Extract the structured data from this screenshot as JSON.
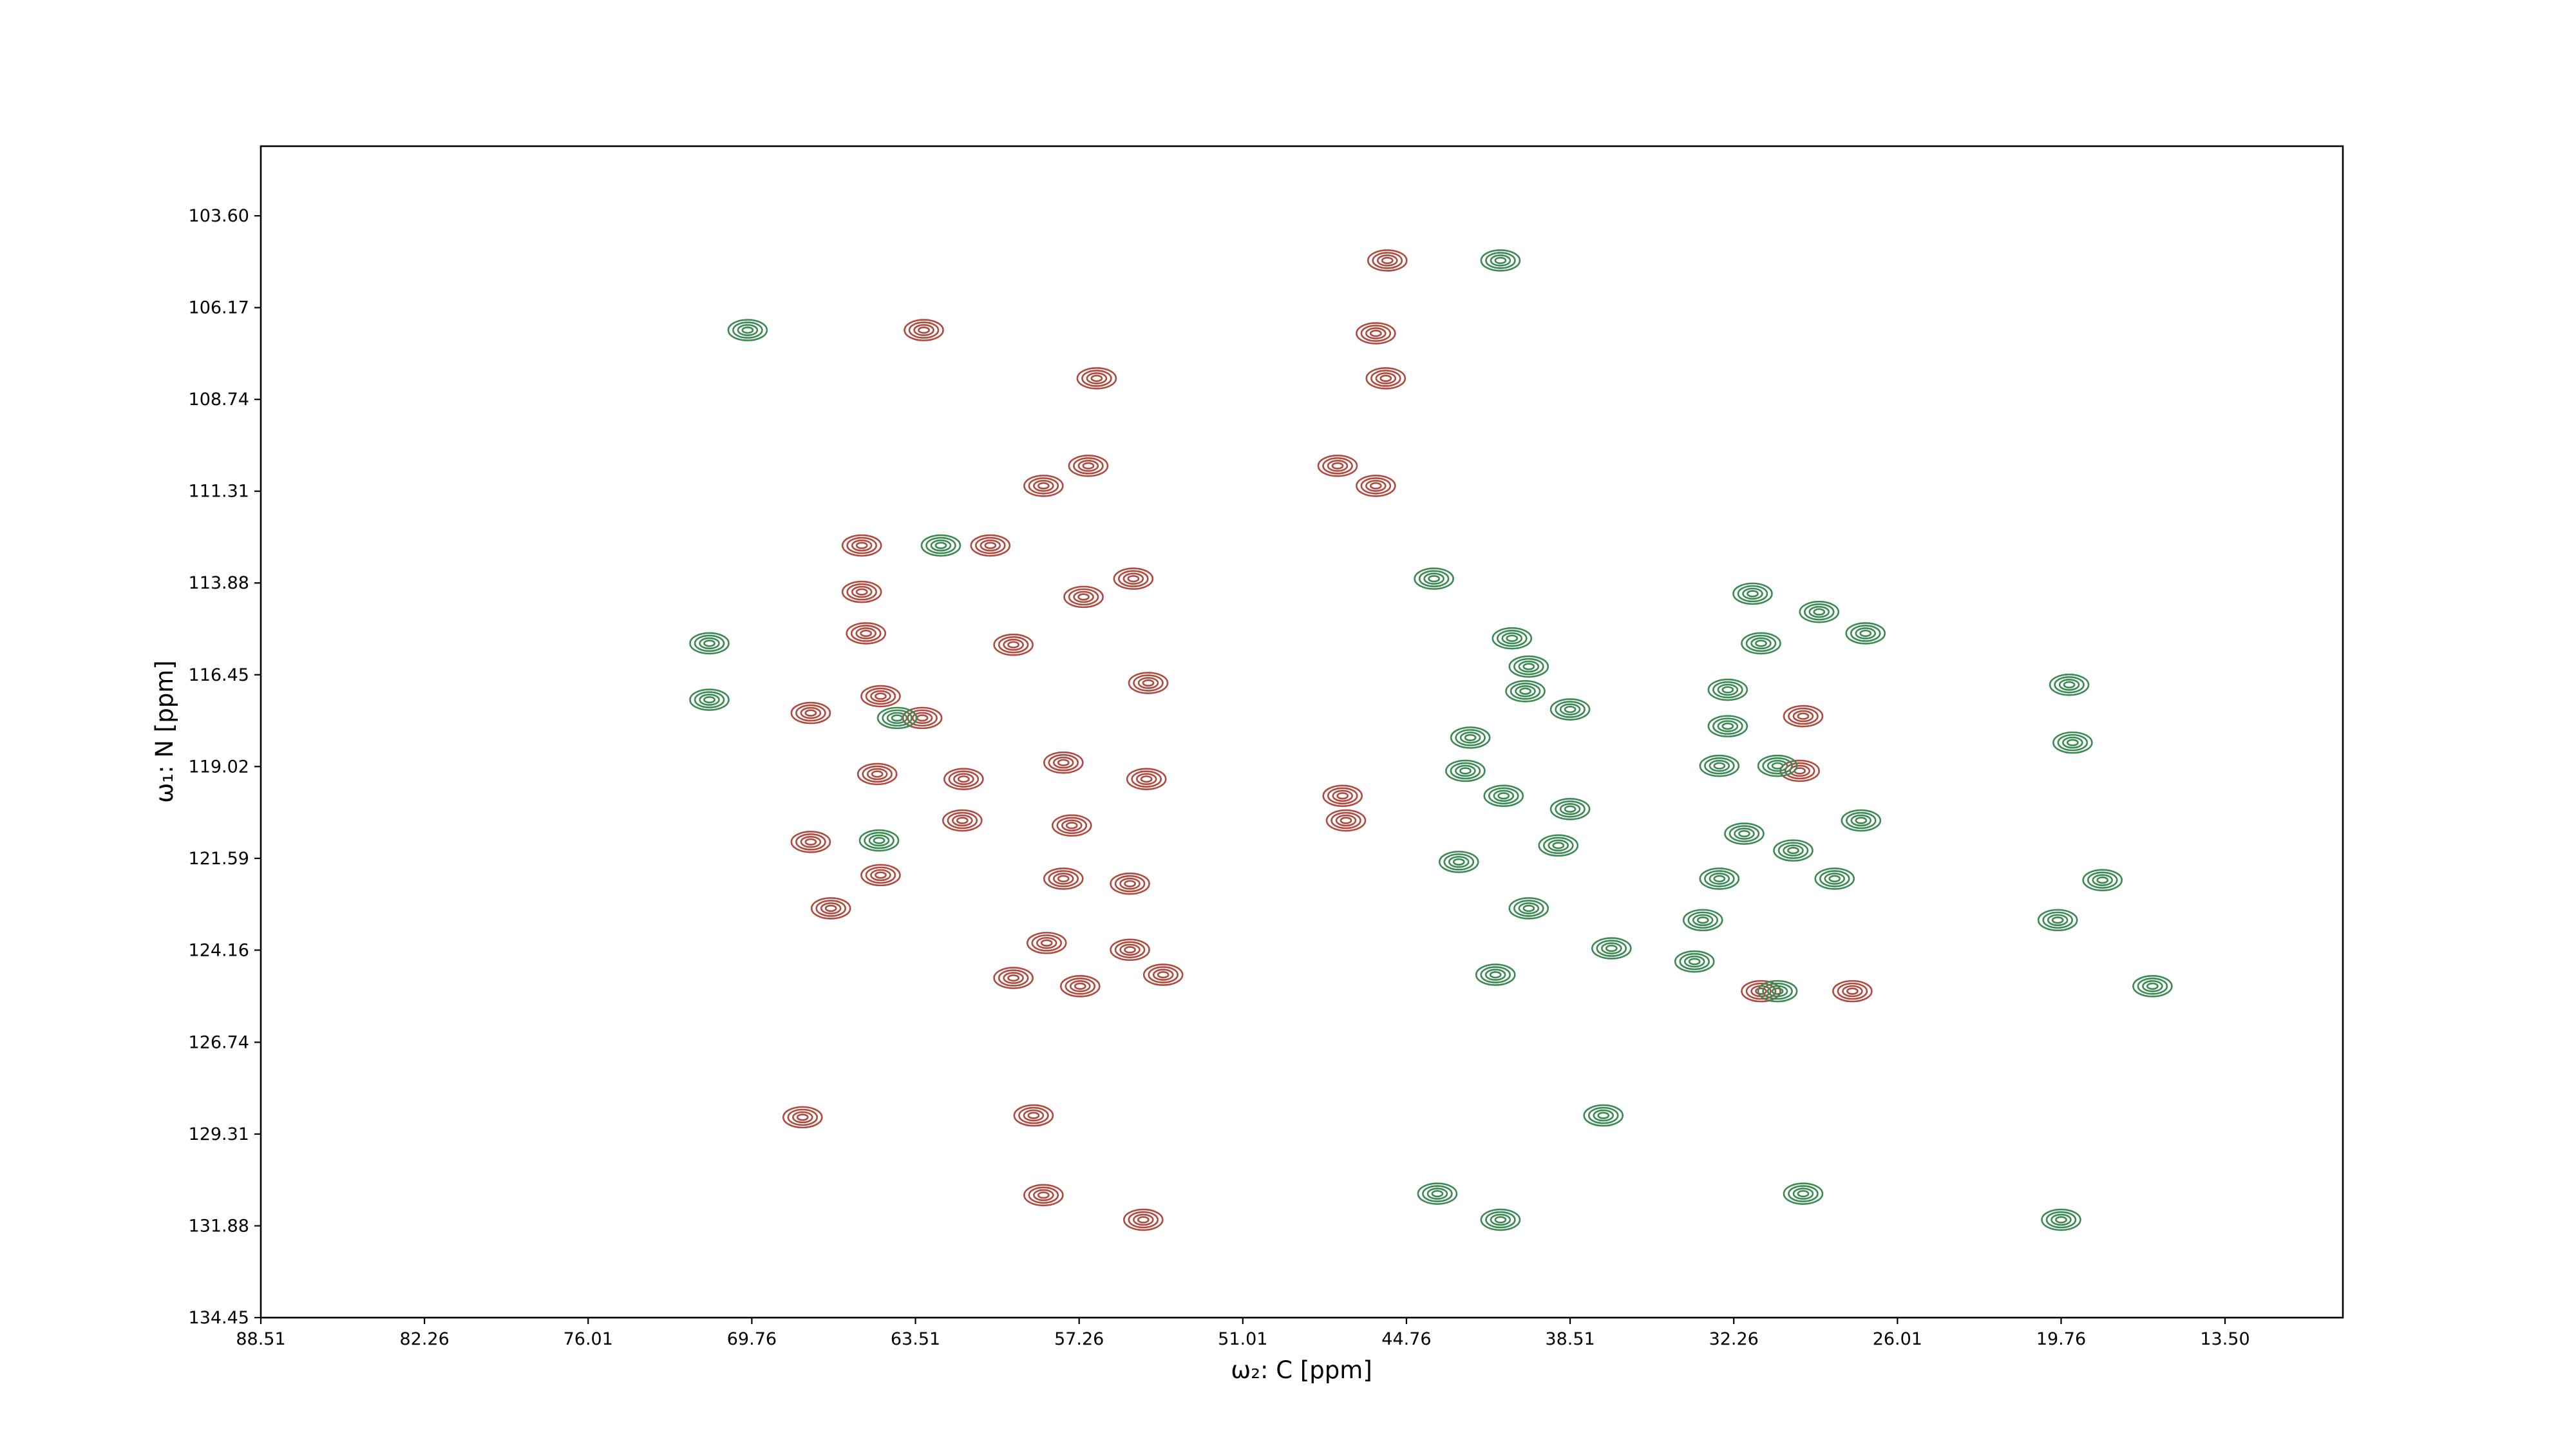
{
  "chart_data": {
    "type": "contour",
    "xlabel": "ω₂: C [ppm]",
    "ylabel": "ω₁: N [ppm]",
    "xlim": [
      88.51,
      9.0
    ],
    "ylim": [
      101.65,
      134.45
    ],
    "xticks": [
      88.51,
      82.26,
      76.01,
      69.76,
      63.51,
      57.26,
      51.01,
      44.76,
      38.51,
      32.26,
      26.01,
      19.76,
      {
        "value": 13.5,
        "label": "13.50"
      }
    ],
    "yticks": [
      {
        "value": 103.6,
        "label": "103.60"
      },
      106.17,
      108.74,
      111.31,
      113.88,
      116.45,
      119.02,
      121.59,
      124.16,
      126.74,
      129.31,
      131.88,
      134.45
    ],
    "series": [
      {
        "color": "#b04a3f",
        "x": [
          45.49,
          63.19,
          45.93,
          56.59,
          45.55,
          47.39,
          45.93,
          58.62,
          56.91,
          60.65,
          65.56,
          57.09,
          55.19,
          65.56,
          65.4,
          59.77,
          67.51,
          64.84,
          63.25,
          64.97,
          61.67,
          57.86,
          54.69,
          61.72,
          57.54,
          47.2,
          47.07,
          67.51,
          64.84,
          66.74,
          57.86,
          55.32,
          58.5,
          55.32,
          59.77,
          57.22,
          54.05,
          31.22,
          27.73,
          67.82,
          59.0,
          58.62,
          54.81,
          29.61,
          29.74,
          54.62
        ],
        "values": [
          104.85,
          106.8,
          106.89,
          108.15,
          108.15,
          110.6,
          111.16,
          111.16,
          110.6,
          112.83,
          112.83,
          114.27,
          113.76,
          114.13,
          115.29,
          115.61,
          117.52,
          117.05,
          117.66,
          119.23,
          119.37,
          118.91,
          119.37,
          120.53,
          120.67,
          119.84,
          120.53,
          121.13,
          122.06,
          122.99,
          122.16,
          122.3,
          123.96,
          124.15,
          124.94,
          125.17,
          124.85,
          125.31,
          125.31,
          128.84,
          128.79,
          131.02,
          131.71,
          117.61,
          119.14,
          116.68
        ]
      },
      {
        "color": "#3a8a52",
        "x": [
          69.92,
          41.17,
          62.54,
          71.38,
          71.38,
          64.21,
          43.71,
          31.54,
          29.0,
          27.23,
          40.73,
          40.09,
          40.22,
          38.51,
          42.32,
          42.51,
          41.05,
          38.51,
          38.96,
          32.49,
          32.49,
          32.81,
          30.59,
          31.86,
          27.4,
          29.99,
          28.41,
          32.81,
          33.44,
          33.76,
          36.93,
          40.09,
          42.76,
          41.36,
          30.59,
          19.32,
          18.18,
          19.89,
          16.27,
          19.45,
          37.24,
          43.58,
          41.17,
          29.61,
          19.76,
          64.9,
          31.22
        ],
        "values": [
          106.8,
          104.85,
          112.83,
          115.57,
          117.15,
          117.66,
          113.76,
          114.18,
          114.69,
          115.29,
          115.43,
          116.22,
          116.91,
          117.42,
          118.21,
          119.14,
          119.84,
          120.21,
          121.23,
          116.87,
          117.89,
          119.0,
          119.0,
          120.9,
          120.53,
          121.37,
          122.16,
          122.16,
          123.32,
          124.48,
          124.11,
          122.99,
          121.69,
          124.85,
          125.31,
          118.35,
          122.2,
          123.32,
          125.17,
          116.73,
          128.79,
          130.98,
          131.71,
          130.98,
          131.71,
          121.09,
          115.57
        ]
      }
    ]
  }
}
